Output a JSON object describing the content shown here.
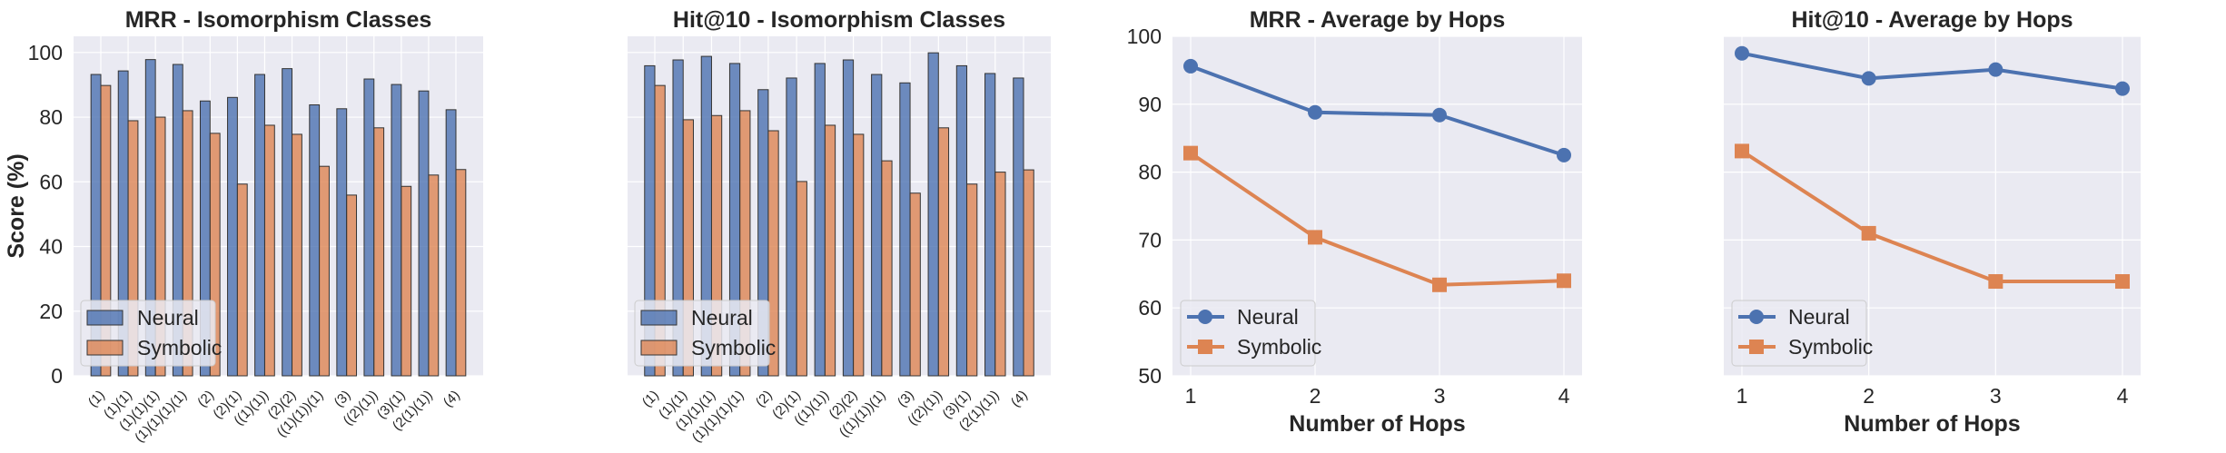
{
  "colors": {
    "neural": "#4c72b0",
    "symbolic": "#dd8452",
    "background": "#eaeaf2",
    "grid": "#ffffff"
  },
  "chart_data": [
    {
      "type": "bar",
      "title": "MRR - Isomorphism Classes",
      "xlabel": "",
      "ylabel": "Score (%)",
      "ylim": [
        0,
        105
      ],
      "yticks": [
        "0",
        "20",
        "40",
        "60",
        "80",
        "100"
      ],
      "categories": [
        "(1)",
        "(1)(1)",
        "(1)(1)(1)",
        "(1)(1)(1)(1)",
        "(2)",
        "(2)(1)",
        "((1)(1))",
        "(2)(2)",
        "((1)(1))(1)",
        "(3)",
        "((2)(1))",
        "(3)(1)",
        "(2(1)(1))",
        "(4)"
      ],
      "series": [
        {
          "name": "Neural",
          "values": [
            93.2,
            94.3,
            97.8,
            96.3,
            85.0,
            86.1,
            93.2,
            95.0,
            83.8,
            82.6,
            91.8,
            90.1,
            88.1,
            82.3
          ]
        },
        {
          "name": "Symbolic",
          "values": [
            89.8,
            78.9,
            80.0,
            82.0,
            75.0,
            59.3,
            77.5,
            74.7,
            64.8,
            55.9,
            76.7,
            58.6,
            62.1,
            63.8
          ]
        }
      ],
      "legend": "lower-left",
      "grid": true
    },
    {
      "type": "bar",
      "title": "Hit@10 - Isomorphism Classes",
      "xlabel": "",
      "ylabel": "",
      "ylim": [
        0,
        105
      ],
      "categories": [
        "(1)",
        "(1)(1)",
        "(1)(1)(1)",
        "(1)(1)(1)(1)",
        "(2)",
        "(2)(1)",
        "((1)(1))",
        "(2)(2)",
        "((1)(1))(1)",
        "(3)",
        "((2)(1))",
        "(3)(1)",
        "(2(1)(1))",
        "(4)"
      ],
      "series": [
        {
          "name": "Neural",
          "values": [
            95.9,
            97.7,
            98.8,
            96.6,
            88.5,
            92.1,
            96.6,
            97.7,
            93.2,
            90.6,
            99.9,
            95.9,
            93.5,
            92.1
          ]
        },
        {
          "name": "Symbolic",
          "values": [
            89.8,
            79.2,
            80.5,
            82.0,
            75.8,
            60.1,
            77.5,
            74.7,
            66.5,
            56.5,
            76.7,
            59.3,
            63.0,
            63.7
          ]
        }
      ],
      "legend": "lower-left",
      "grid": true
    },
    {
      "type": "line",
      "title": "MRR - Average by Hops",
      "xlabel": "Number of Hops",
      "ylabel": "",
      "ylim": [
        50,
        100
      ],
      "yticks": [
        "50",
        "60",
        "70",
        "80",
        "90",
        "100"
      ],
      "x": [
        "1",
        "2",
        "3",
        "4"
      ],
      "series": [
        {
          "name": "Neural",
          "marker": "circle",
          "values": [
            95.6,
            88.8,
            88.4,
            82.5
          ]
        },
        {
          "name": "Symbolic",
          "marker": "square",
          "values": [
            82.8,
            70.4,
            63.4,
            64.0
          ]
        }
      ],
      "legend": "lower-left",
      "grid": true
    },
    {
      "type": "line",
      "title": "Hit@10 - Average by Hops",
      "xlabel": "Number of Hops",
      "ylabel": "",
      "ylim": [
        50,
        100
      ],
      "x": [
        "1",
        "2",
        "3",
        "4"
      ],
      "series": [
        {
          "name": "Neural",
          "marker": "circle",
          "values": [
            97.5,
            93.8,
            95.1,
            92.3
          ]
        },
        {
          "name": "Symbolic",
          "marker": "square",
          "values": [
            83.1,
            71.0,
            63.9,
            63.9
          ]
        }
      ],
      "legend": "lower-left",
      "grid": true
    }
  ]
}
